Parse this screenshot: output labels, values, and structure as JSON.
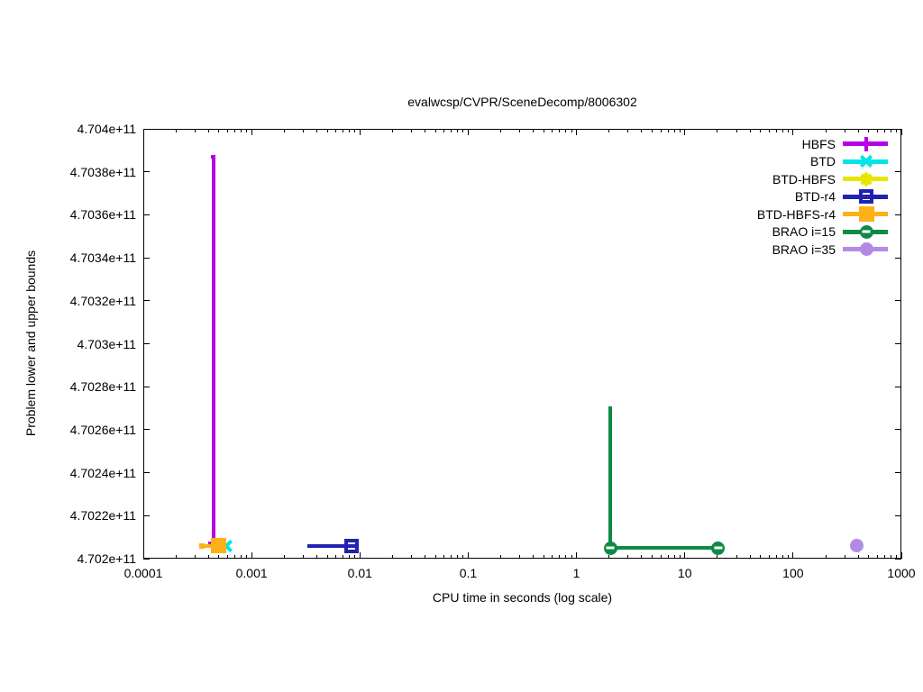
{
  "chart": {
    "title": "evalwcsp/CVPR/SceneDecomp/8006302",
    "xlabel": "CPU time in seconds (log scale)",
    "ylabel": "Problem lower and upper bounds"
  },
  "chart_data": {
    "type": "line",
    "title": "evalwcsp/CVPR/SceneDecomp/8006302",
    "xlabel": "CPU time in seconds (log scale)",
    "ylabel": "Problem lower and upper bounds",
    "x_scale": "log",
    "grid": false,
    "legend_position": "top-right",
    "xlim": [
      0.0001,
      1000
    ],
    "ylim": [
      470200000000,
      470400000000
    ],
    "x_ticks": [
      {
        "value": 0.0001,
        "label": "0.0001"
      },
      {
        "value": 0.001,
        "label": "0.001"
      },
      {
        "value": 0.01,
        "label": "0.01"
      },
      {
        "value": 0.1,
        "label": "0.1"
      },
      {
        "value": 1,
        "label": "1"
      },
      {
        "value": 10,
        "label": "10"
      },
      {
        "value": 100,
        "label": "100"
      },
      {
        "value": 1000,
        "label": "1000"
      }
    ],
    "y_ticks": [
      {
        "value": 470200000000,
        "label": "4.702e+11"
      },
      {
        "value": 470220000000,
        "label": "4.7022e+11"
      },
      {
        "value": 470240000000,
        "label": "4.7024e+11"
      },
      {
        "value": 470260000000,
        "label": "4.7026e+11"
      },
      {
        "value": 470280000000,
        "label": "4.7028e+11"
      },
      {
        "value": 470300000000,
        "label": "4.703e+11"
      },
      {
        "value": 470320000000,
        "label": "4.7032e+11"
      },
      {
        "value": 470340000000,
        "label": "4.7034e+11"
      },
      {
        "value": 470360000000,
        "label": "4.7036e+11"
      },
      {
        "value": 470380000000,
        "label": "4.7038e+11"
      },
      {
        "value": 470400000000,
        "label": "4.704e+11"
      }
    ],
    "series": [
      {
        "name": "HBFS",
        "color": "#b800e8",
        "marker": "plus",
        "lines": [
          {
            "x1": 0.00045,
            "y1": 470206000000,
            "x2": 0.00045,
            "y2": 470387000000
          },
          {
            "x1": 0.00042,
            "y1": 470387000000,
            "x2": 0.00046,
            "y2": 470387000000
          },
          {
            "x1": 0.0004,
            "y1": 470207000000,
            "x2": 0.00048,
            "y2": 470207000000
          }
        ],
        "points": []
      },
      {
        "name": "BTD",
        "color": "#00e5e5",
        "marker": "x",
        "lines": [],
        "points": [
          {
            "x": 0.000585,
            "y": 470206000000
          }
        ]
      },
      {
        "name": "BTD-HBFS",
        "color": "#e6e600",
        "marker": "star",
        "lines": [],
        "points": [
          {
            "x": 0.0005,
            "y": 470206000000
          }
        ]
      },
      {
        "name": "BTD-r4",
        "color": "#2222b2",
        "marker": "open-square",
        "lines": [
          {
            "x1": 0.0033,
            "y1": 470206000000,
            "x2": 0.0094,
            "y2": 470206000000
          }
        ],
        "points": [
          {
            "x": 0.0084,
            "y": 470206000000
          }
        ]
      },
      {
        "name": "BTD-HBFS-r4",
        "color": "#fdb117",
        "marker": "square",
        "lines": [
          {
            "x1": 0.00035,
            "y1": 470206000000,
            "x2": 0.0005,
            "y2": 470206000000
          }
        ],
        "points": [
          {
            "x": 0.00035,
            "y": 470206000000,
            "size": 6
          },
          {
            "x": 0.0005,
            "y": 470206000000
          }
        ]
      },
      {
        "name": "BRAO i=15",
        "color": "#0e8a47",
        "marker": "circle-dash",
        "lines": [
          {
            "x1": 2.05,
            "y1": 470205000000,
            "x2": 2.05,
            "y2": 470271000000
          },
          {
            "x1": 2.05,
            "y1": 470205000000,
            "x2": 20.4,
            "y2": 470205000000
          }
        ],
        "points": [
          {
            "x": 2.05,
            "y": 470205000000
          },
          {
            "x": 20.4,
            "y": 470205000000
          }
        ]
      },
      {
        "name": "BRAO i=35",
        "color": "#b28ae6",
        "marker": "circle",
        "lines": [],
        "points": [
          {
            "x": 384,
            "y": 470206000000
          }
        ]
      }
    ]
  }
}
